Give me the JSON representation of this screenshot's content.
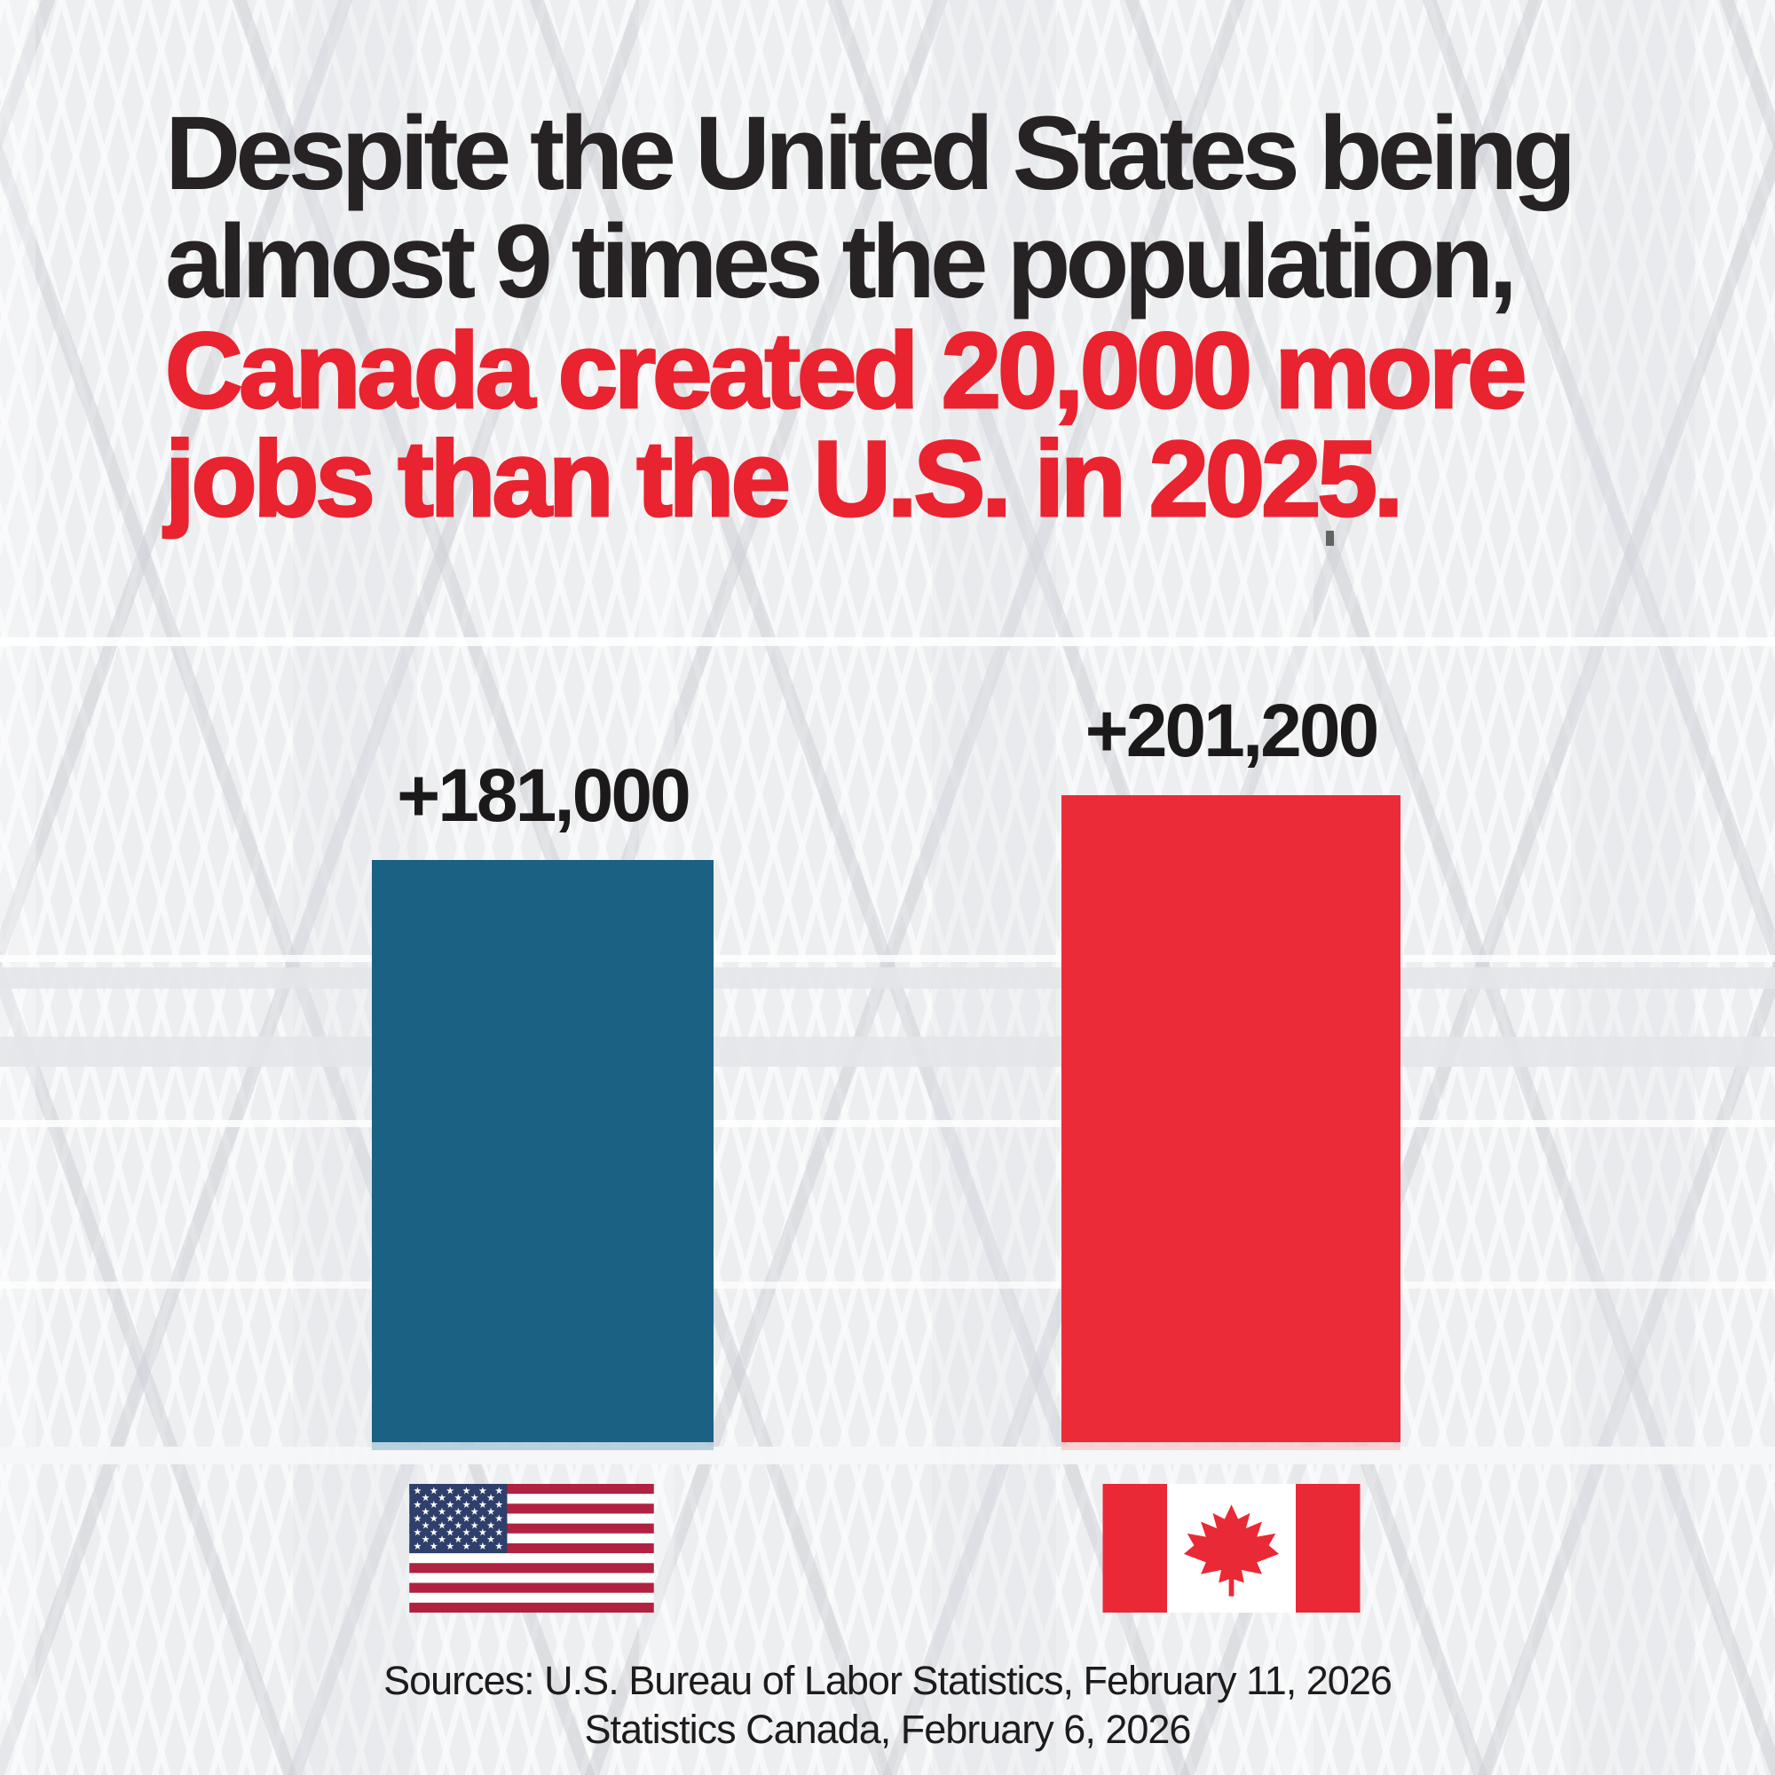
{
  "headline": {
    "black_line1": "Despite the United States being",
    "black_line2": "almost 9 times the population,",
    "red_line1": "Canada created 20,000 more",
    "red_line2": "jobs than the U.S. in 2025."
  },
  "chart_data": {
    "type": "bar",
    "categories": [
      "United States",
      "Canada"
    ],
    "series": [
      {
        "name": "Jobs created in 2025",
        "values": [
          181000,
          201200
        ]
      }
    ],
    "data_labels": [
      "+181,000",
      "+201,200"
    ],
    "bar_colors": [
      "#1b6183",
      "#ec2b39"
    ],
    "ylim": [
      0,
      201200
    ],
    "grid": false,
    "legend": "none",
    "category_icons": [
      "us-flag-icon",
      "canada-flag-icon"
    ]
  },
  "footer": {
    "sources_line1": "Sources: U.S. Bureau of Labor Statistics, February 11, 2026",
    "sources_line2": "Statistics Canada, February 6, 2026"
  },
  "colors": {
    "background": "#edeef0",
    "headline_text": "#272324",
    "accent_red": "#e9232f",
    "bar_blue": "#1b6183",
    "bar_red": "#ec2b39",
    "us_flag_stripe_red": "#b02240",
    "us_flag_canton_blue": "#2e3f6b",
    "canada_flag_red": "#ea2936"
  }
}
